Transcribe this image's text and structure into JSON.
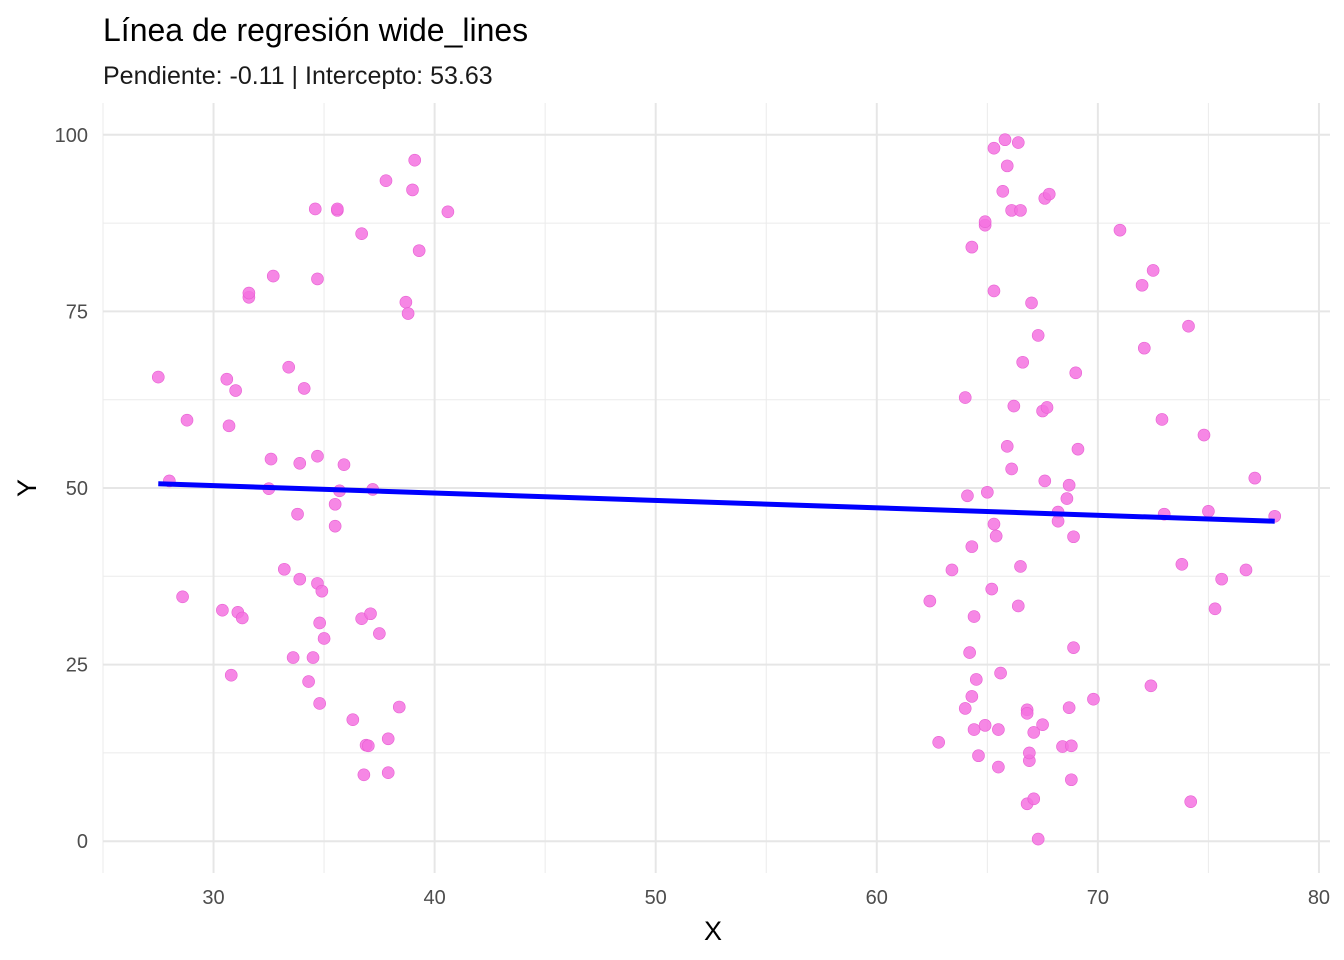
{
  "chart_data": {
    "type": "scatter",
    "title": "Línea de regresión wide_lines",
    "subtitle": "Pendiente: -0.11 | Intercepto: 53.63",
    "xlabel": "X",
    "ylabel": "Y",
    "xlim": [
      25,
      80.5
    ],
    "ylim": [
      -4.5,
      104.5
    ],
    "x_ticks": [
      30,
      40,
      50,
      60,
      70,
      80
    ],
    "y_ticks": [
      0,
      25,
      50,
      75,
      100
    ],
    "grid": true,
    "point_color": "#f472e0",
    "line_color": "#0000ff",
    "regression": {
      "slope": -0.11,
      "intercept": 53.63,
      "x_range": [
        27.5,
        78.0
      ]
    },
    "points": [
      [
        27.5,
        65.7
      ],
      [
        28.0,
        51.0
      ],
      [
        28.6,
        34.6
      ],
      [
        28.8,
        59.6
      ],
      [
        30.4,
        32.7
      ],
      [
        30.6,
        65.4
      ],
      [
        30.7,
        58.8
      ],
      [
        30.8,
        23.5
      ],
      [
        31.0,
        63.8
      ],
      [
        31.1,
        32.4
      ],
      [
        31.3,
        31.6
      ],
      [
        31.6,
        77.0
      ],
      [
        31.6,
        77.6
      ],
      [
        32.5,
        49.9
      ],
      [
        32.6,
        54.1
      ],
      [
        32.7,
        80.0
      ],
      [
        33.2,
        38.5
      ],
      [
        33.4,
        67.1
      ],
      [
        33.6,
        26.0
      ],
      [
        33.8,
        46.3
      ],
      [
        33.9,
        37.1
      ],
      [
        33.9,
        53.5
      ],
      [
        34.1,
        64.1
      ],
      [
        34.3,
        22.6
      ],
      [
        34.5,
        26.0
      ],
      [
        34.6,
        89.5
      ],
      [
        34.7,
        79.6
      ],
      [
        34.7,
        54.5
      ],
      [
        34.7,
        36.5
      ],
      [
        34.8,
        19.5
      ],
      [
        34.8,
        30.9
      ],
      [
        34.9,
        35.4
      ],
      [
        35.0,
        28.7
      ],
      [
        35.5,
        47.7
      ],
      [
        35.5,
        44.6
      ],
      [
        35.6,
        89.3
      ],
      [
        35.6,
        89.5
      ],
      [
        35.7,
        49.6
      ],
      [
        35.9,
        53.3
      ],
      [
        36.3,
        17.2
      ],
      [
        36.7,
        31.5
      ],
      [
        36.7,
        86.0
      ],
      [
        36.8,
        9.4
      ],
      [
        36.9,
        13.6
      ],
      [
        37.0,
        13.5
      ],
      [
        37.1,
        32.2
      ],
      [
        37.2,
        49.8
      ],
      [
        37.5,
        29.4
      ],
      [
        37.8,
        93.5
      ],
      [
        37.9,
        14.5
      ],
      [
        37.9,
        9.7
      ],
      [
        38.4,
        19.0
      ],
      [
        38.7,
        76.3
      ],
      [
        38.8,
        74.7
      ],
      [
        39.0,
        92.2
      ],
      [
        39.1,
        96.4
      ],
      [
        39.3,
        83.6
      ],
      [
        40.6,
        89.1
      ],
      [
        62.4,
        34.0
      ],
      [
        62.8,
        14.0
      ],
      [
        63.4,
        38.4
      ],
      [
        64.0,
        18.8
      ],
      [
        64.0,
        62.8
      ],
      [
        64.1,
        48.9
      ],
      [
        64.2,
        26.7
      ],
      [
        64.3,
        84.1
      ],
      [
        64.3,
        20.5
      ],
      [
        64.3,
        41.7
      ],
      [
        64.4,
        31.8
      ],
      [
        64.4,
        15.8
      ],
      [
        64.5,
        22.9
      ],
      [
        64.6,
        12.1
      ],
      [
        64.9,
        87.2
      ],
      [
        64.9,
        87.7
      ],
      [
        64.9,
        16.4
      ],
      [
        65.0,
        49.4
      ],
      [
        65.2,
        35.7
      ],
      [
        65.3,
        44.9
      ],
      [
        65.3,
        77.9
      ],
      [
        65.3,
        98.1
      ],
      [
        65.4,
        43.2
      ],
      [
        65.5,
        10.5
      ],
      [
        65.5,
        15.8
      ],
      [
        65.6,
        23.8
      ],
      [
        65.7,
        92.0
      ],
      [
        65.8,
        99.3
      ],
      [
        65.9,
        55.9
      ],
      [
        65.9,
        95.6
      ],
      [
        66.1,
        52.7
      ],
      [
        66.1,
        89.3
      ],
      [
        66.2,
        61.6
      ],
      [
        66.4,
        33.3
      ],
      [
        66.4,
        98.9
      ],
      [
        66.5,
        38.9
      ],
      [
        66.5,
        89.3
      ],
      [
        66.6,
        67.8
      ],
      [
        66.8,
        5.3
      ],
      [
        66.8,
        18.6
      ],
      [
        66.8,
        18.1
      ],
      [
        66.9,
        11.4
      ],
      [
        66.9,
        12.5
      ],
      [
        67.0,
        76.2
      ],
      [
        67.1,
        15.4
      ],
      [
        67.1,
        6.0
      ],
      [
        67.3,
        71.6
      ],
      [
        67.3,
        0.3
      ],
      [
        67.5,
        16.5
      ],
      [
        67.5,
        60.9
      ],
      [
        67.6,
        91.0
      ],
      [
        67.6,
        51.0
      ],
      [
        67.7,
        61.4
      ],
      [
        67.8,
        91.6
      ],
      [
        68.2,
        46.6
      ],
      [
        68.2,
        45.3
      ],
      [
        68.4,
        13.4
      ],
      [
        68.6,
        48.5
      ],
      [
        68.7,
        18.9
      ],
      [
        68.7,
        50.4
      ],
      [
        68.8,
        13.5
      ],
      [
        68.8,
        8.7
      ],
      [
        68.9,
        43.1
      ],
      [
        68.9,
        27.4
      ],
      [
        69.0,
        66.3
      ],
      [
        69.1,
        55.5
      ],
      [
        69.8,
        20.1
      ],
      [
        71.0,
        86.5
      ],
      [
        72.0,
        78.7
      ],
      [
        72.1,
        69.8
      ],
      [
        72.4,
        22.0
      ],
      [
        72.5,
        80.8
      ],
      [
        72.9,
        59.7
      ],
      [
        73.0,
        46.3
      ],
      [
        73.8,
        39.2
      ],
      [
        74.1,
        72.9
      ],
      [
        74.2,
        5.6
      ],
      [
        74.8,
        57.5
      ],
      [
        75.0,
        46.7
      ],
      [
        75.3,
        32.9
      ],
      [
        75.6,
        37.1
      ],
      [
        76.7,
        38.4
      ],
      [
        77.1,
        51.4
      ],
      [
        78.0,
        46.0
      ]
    ]
  }
}
